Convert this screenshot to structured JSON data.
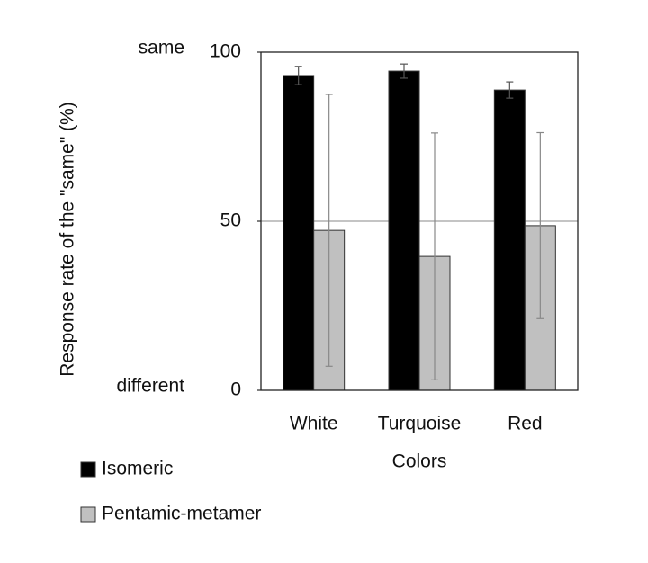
{
  "chart_data": {
    "type": "bar",
    "y_label": "Response rate of the \"same\" (%)",
    "x_label": "Colors",
    "categories": [
      "White",
      "Turquoise",
      "Red"
    ],
    "series": [
      {
        "name": "Isomeric",
        "color": "#000000",
        "values": [
          93.1,
          94.4,
          88.8
        ],
        "errors": [
          2.7,
          2.1,
          2.4
        ]
      },
      {
        "name": "Pentamic-metamer",
        "color": "#c0c0c0",
        "values": [
          47.3,
          39.6,
          48.7
        ],
        "errors": [
          40.2,
          36.5,
          27.5
        ]
      }
    ],
    "ylim": [
      0,
      100
    ],
    "yticks": [
      0,
      50,
      100
    ],
    "reference_line": 50,
    "annotations": [
      {
        "text": "same",
        "y": 100
      },
      {
        "text": "different",
        "y": 0
      }
    ],
    "legend": "bottom-left"
  }
}
